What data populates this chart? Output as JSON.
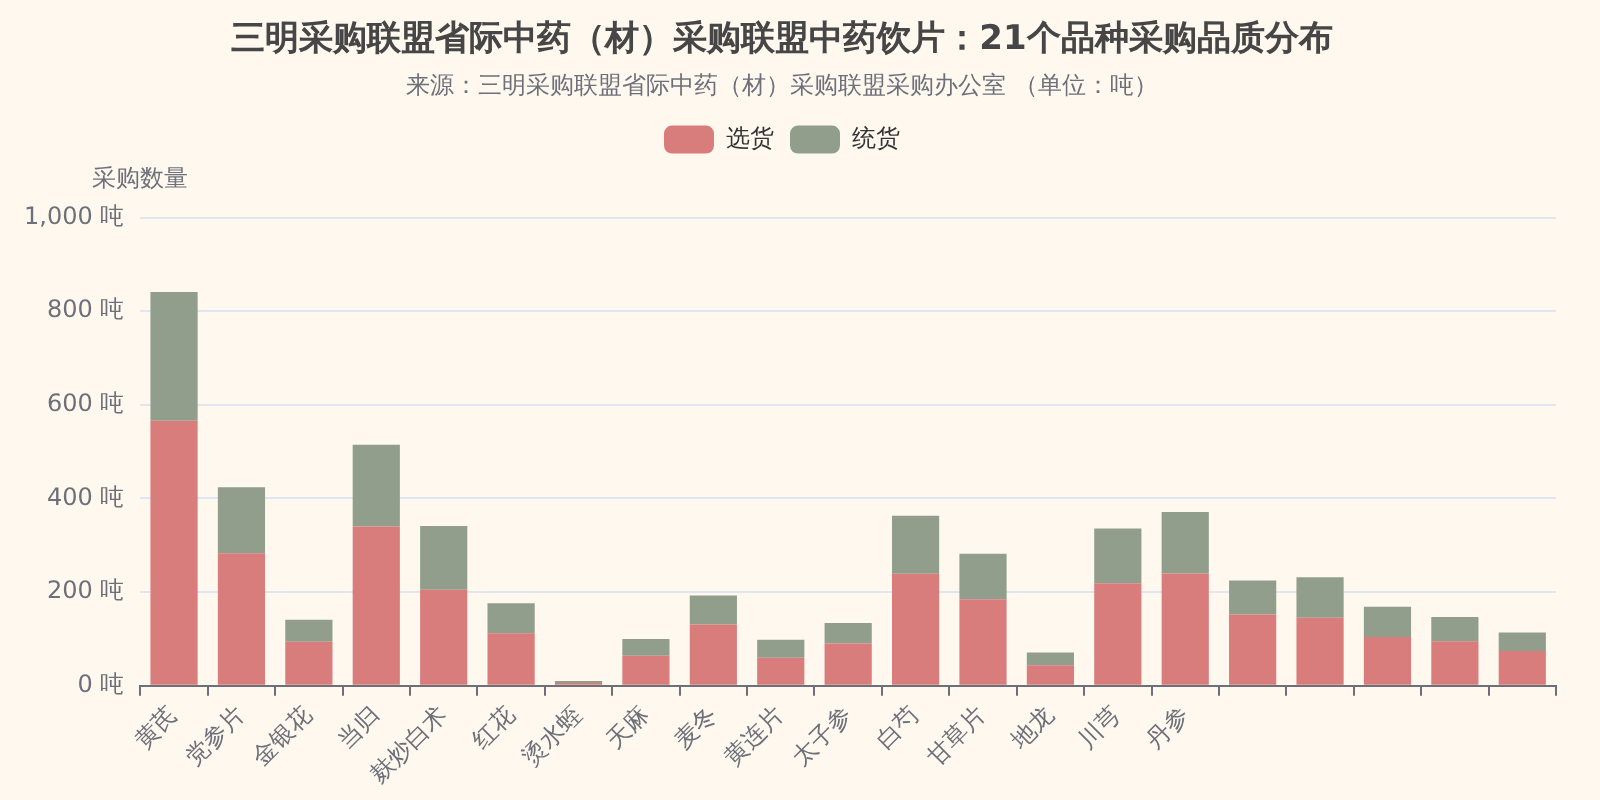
{
  "chart_data": {
    "type": "bar",
    "title": "三明采购联盟省际中药（材）采购联盟中药饮片：21个品种采购品质分布",
    "subtitle": "来源：三明采购联盟省际中药（材）采购联盟采购办公室 （单位：吨）",
    "ylabel": "采购数量",
    "categories": [
      "黄芪",
      "党参片",
      "金银花",
      "当归",
      "麸炒白术",
      "红花",
      "烫水蛭",
      "天麻",
      "麦冬",
      "黄连片",
      "太子参",
      "白芍",
      "甘草片",
      "地龙",
      "川芎",
      "丹参",
      null,
      null,
      null,
      null,
      null
    ],
    "series": [
      {
        "name": "选货",
        "color": "#d87c7c",
        "values": [
          566,
          283,
          94,
          340,
          205,
          112,
          6,
          64,
          131,
          60,
          90,
          239,
          185,
          44,
          219,
          240,
          152,
          145,
          104,
          95,
          74
        ]
      },
      {
        "name": "统货",
        "color": "#919e8b",
        "values": [
          275,
          141,
          47,
          175,
          136,
          64,
          4,
          36,
          62,
          38,
          44,
          124,
          97,
          27,
          117,
          131,
          73,
          87,
          65,
          52,
          40
        ]
      }
    ],
    "stacked": true,
    "ylim": [
      0,
      1000
    ],
    "yticks": [
      {
        "value": 0,
        "label": "0 吨"
      },
      {
        "value": 200,
        "label": "200 吨"
      },
      {
        "value": 400,
        "label": "400 吨"
      },
      {
        "value": 600,
        "label": "600 吨"
      },
      {
        "value": 800,
        "label": "800 吨"
      },
      {
        "value": 1000,
        "label": "1,000 吨"
      }
    ],
    "grid": "y",
    "legend": "top"
  }
}
